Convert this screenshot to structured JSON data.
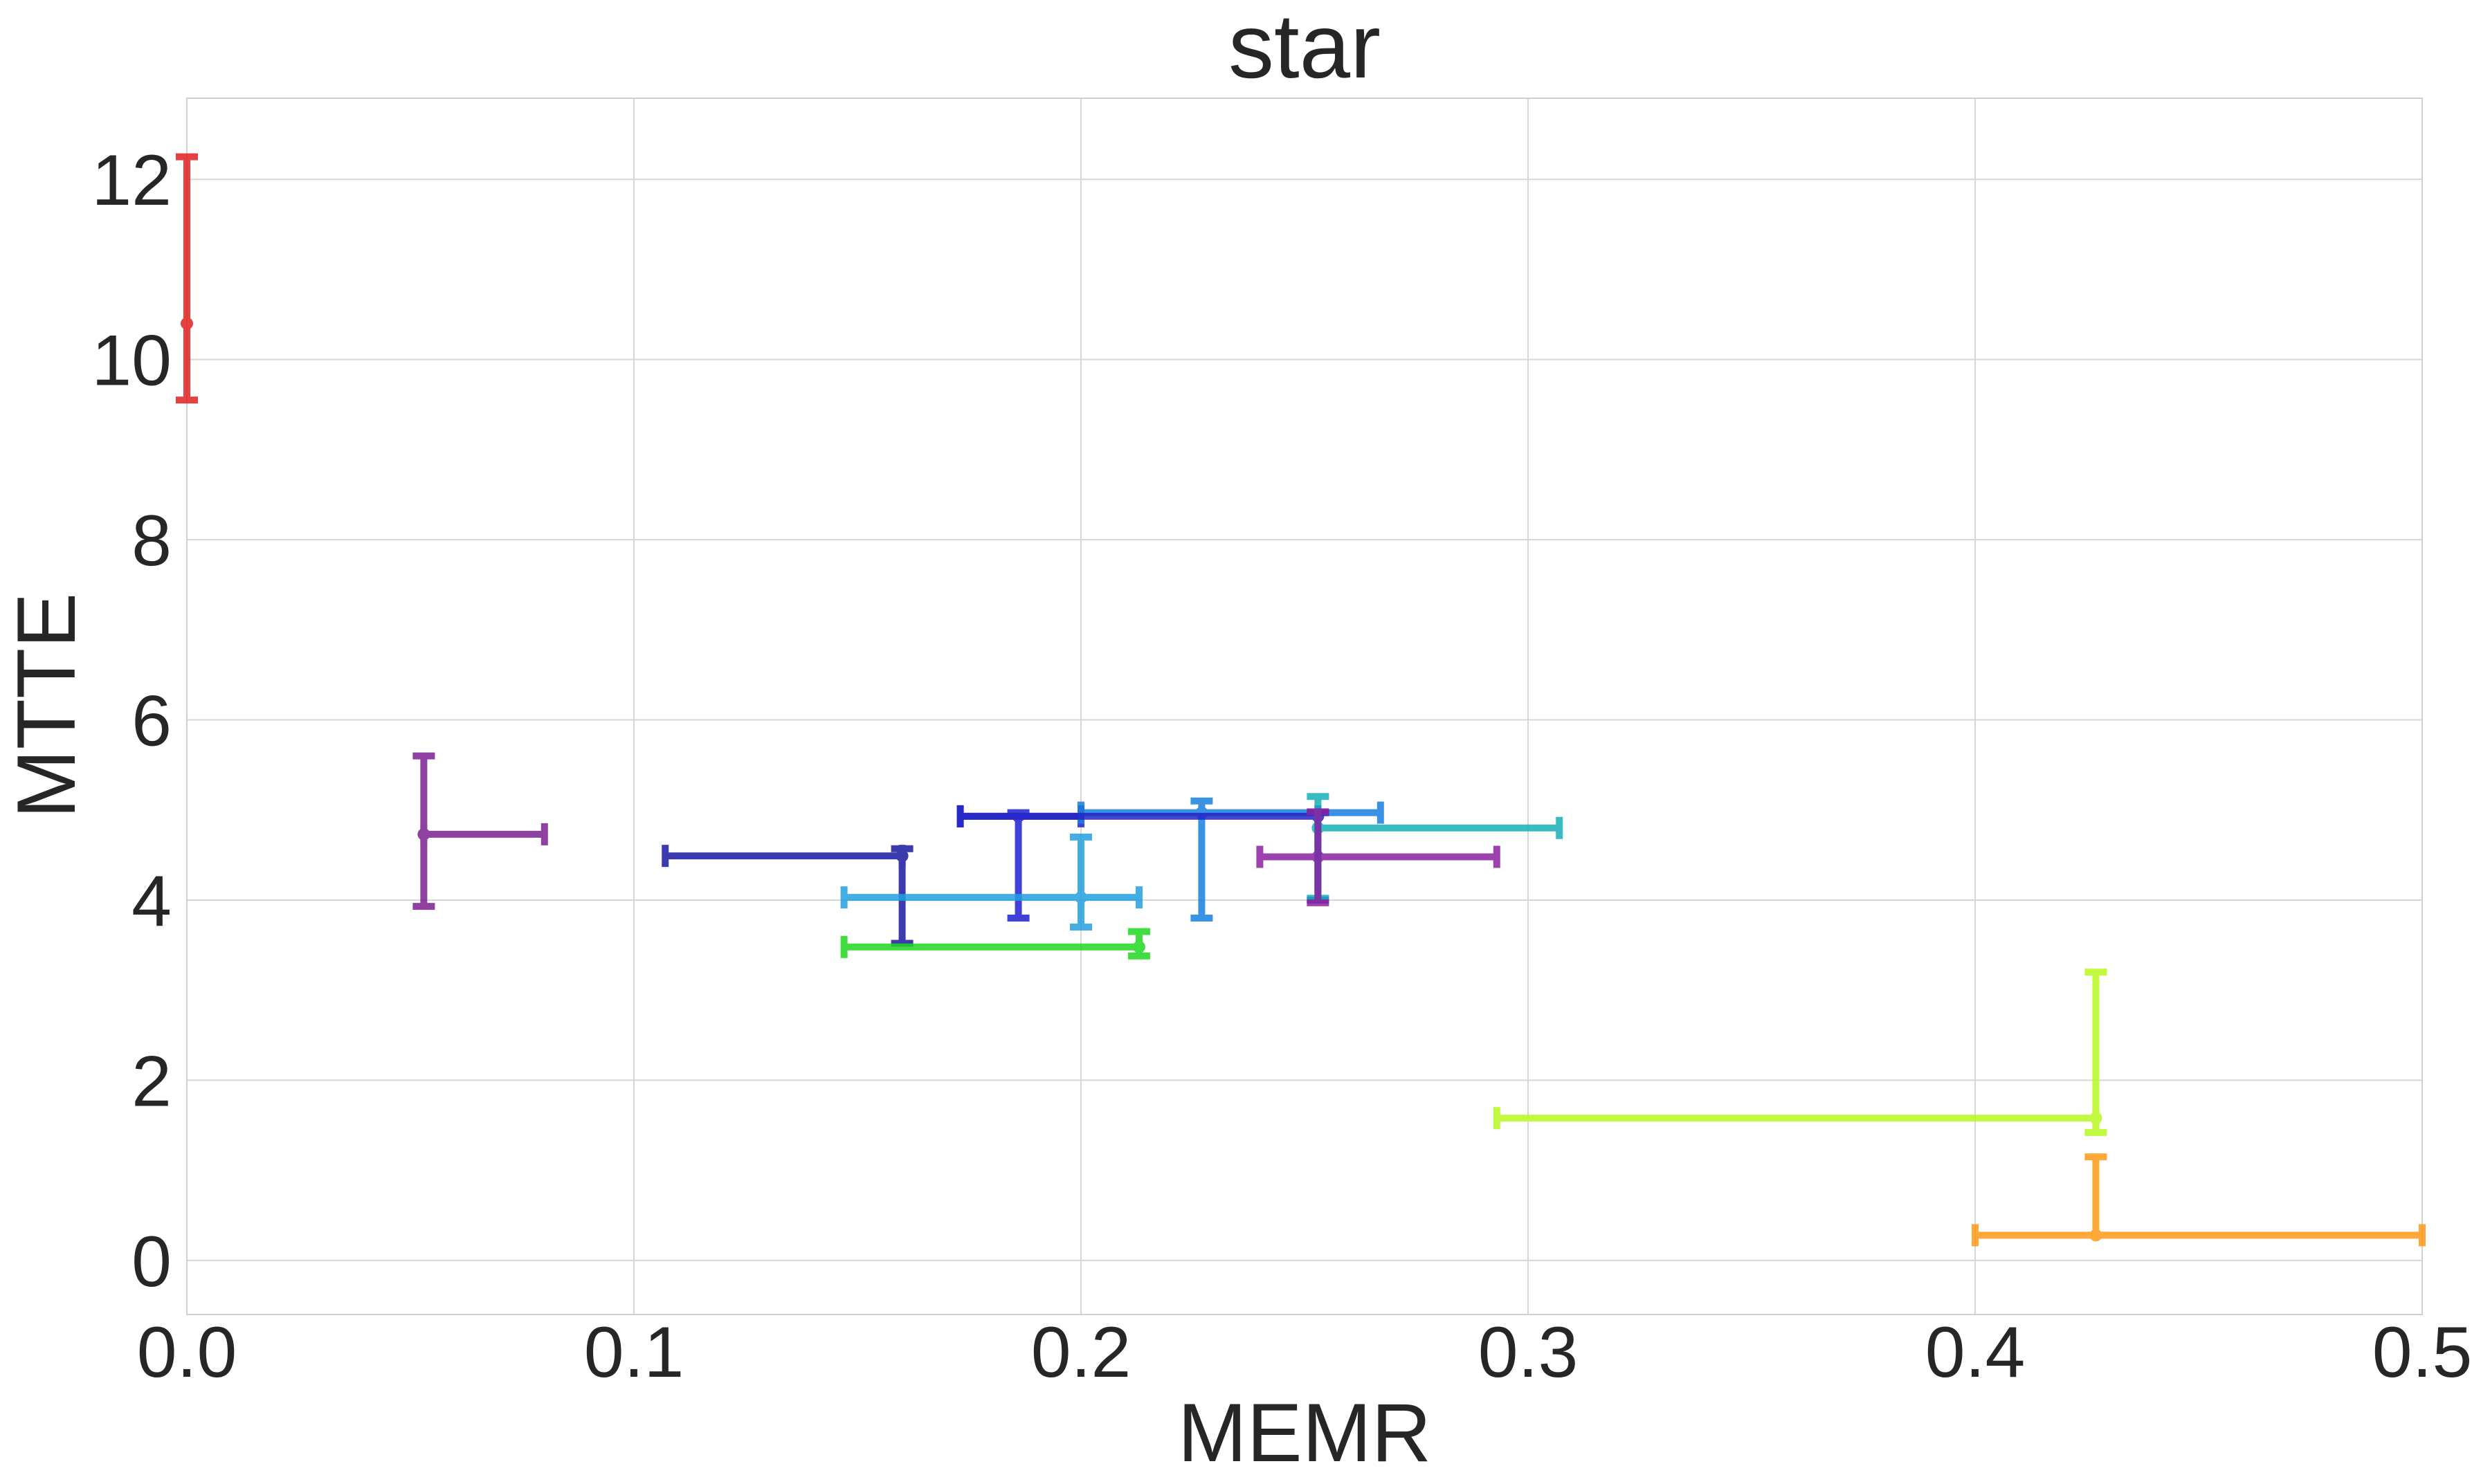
{
  "chart_data": {
    "type": "scatter",
    "title": "star",
    "xlabel": "MEMR",
    "ylabel": "MTTE",
    "xlim": [
      0.0,
      0.5
    ],
    "ylim": [
      -0.6,
      12.9
    ],
    "xticks": [
      0.0,
      0.1,
      0.2,
      0.3,
      0.4,
      0.5
    ],
    "xtick_labels": [
      "0.0",
      "0.1",
      "0.2",
      "0.3",
      "0.4",
      "0.5"
    ],
    "yticks": [
      0,
      2,
      4,
      6,
      8,
      10,
      12
    ],
    "ytick_labels": [
      "0",
      "2",
      "4",
      "6",
      "8",
      "10",
      "12"
    ],
    "grid": true,
    "points": [
      {
        "x": 0.0,
        "y": 10.4,
        "xerr": [
          0.0,
          0.0
        ],
        "yerr": [
          9.55,
          12.25
        ],
        "color": "#e02020"
      },
      {
        "x": 0.053,
        "y": 4.73,
        "xerr": [
          0.053,
          0.08
        ],
        "yerr": [
          3.93,
          5.6
        ],
        "color": "#7b2090"
      },
      {
        "x": 0.16,
        "y": 4.49,
        "xerr": [
          0.107,
          0.16
        ],
        "yerr": [
          3.52,
          4.57
        ],
        "color": "#1a1aa0"
      },
      {
        "x": 0.186,
        "y": 4.93,
        "xerr": [
          0.173,
          0.2
        ],
        "yerr": [
          3.8,
          4.97
        ],
        "color": "#2020d0"
      },
      {
        "x": 0.2,
        "y": 4.03,
        "xerr": [
          0.147,
          0.213
        ],
        "yerr": [
          3.7,
          4.7
        ],
        "color": "#22a0e0"
      },
      {
        "x": 0.213,
        "y": 3.48,
        "xerr": [
          0.147,
          0.213
        ],
        "yerr": [
          3.38,
          3.65
        ],
        "color": "#20d820"
      },
      {
        "x": 0.227,
        "y": 4.97,
        "xerr": [
          0.2,
          0.267
        ],
        "yerr": [
          3.8,
          5.1
        ],
        "color": "#1880e0"
      },
      {
        "x": 0.253,
        "y": 4.93,
        "xerr": [
          0.173,
          0.253
        ],
        "yerr": [
          4.0,
          4.97
        ],
        "color": "#2424c8"
      },
      {
        "x": 0.253,
        "y": 4.8,
        "xerr": [
          0.253,
          0.307
        ],
        "yerr": [
          4.02,
          5.15
        ],
        "color": "#18b0b8"
      },
      {
        "x": 0.253,
        "y": 4.48,
        "xerr": [
          0.24,
          0.293
        ],
        "yerr": [
          3.97,
          4.98
        ],
        "color": "#8a22a0"
      },
      {
        "x": 0.427,
        "y": 1.58,
        "xerr": [
          0.293,
          0.427
        ],
        "yerr": [
          1.42,
          3.2
        ],
        "color": "#b8f820"
      },
      {
        "x": 0.427,
        "y": 0.28,
        "xerr": [
          0.4,
          0.5
        ],
        "yerr": [
          0.28,
          1.15
        ],
        "color": "#ff9a18"
      }
    ]
  }
}
